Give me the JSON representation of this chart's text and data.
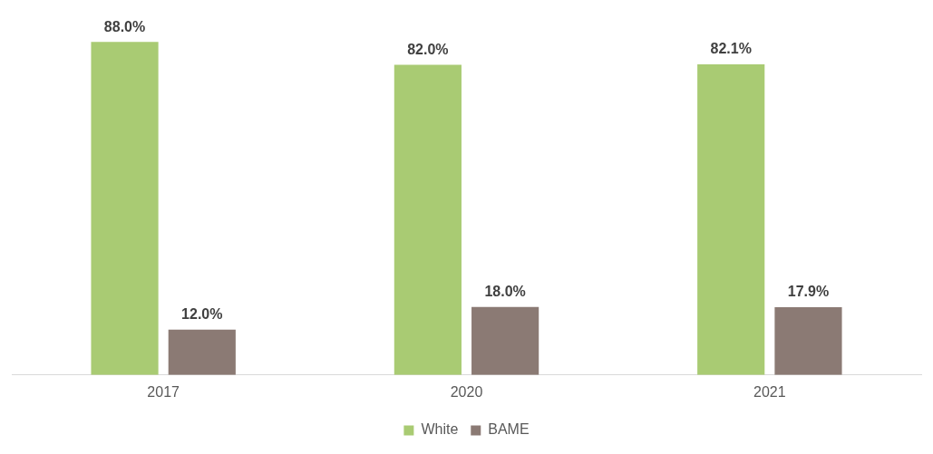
{
  "chart_data": {
    "type": "bar",
    "categories": [
      "2017",
      "2020",
      "2021"
    ],
    "series": [
      {
        "name": "White",
        "color": "#a9cb73",
        "values": [
          88.0,
          82.0,
          82.1
        ],
        "value_labels": [
          "88.0%",
          "82.0%",
          "82.1%"
        ]
      },
      {
        "name": "BAME",
        "color": "#8b7a74",
        "values": [
          12.0,
          18.0,
          17.9
        ],
        "value_labels": [
          "12.0%",
          "18.0%",
          "17.9%"
        ]
      }
    ],
    "legend": "bottom",
    "grid": false
  }
}
